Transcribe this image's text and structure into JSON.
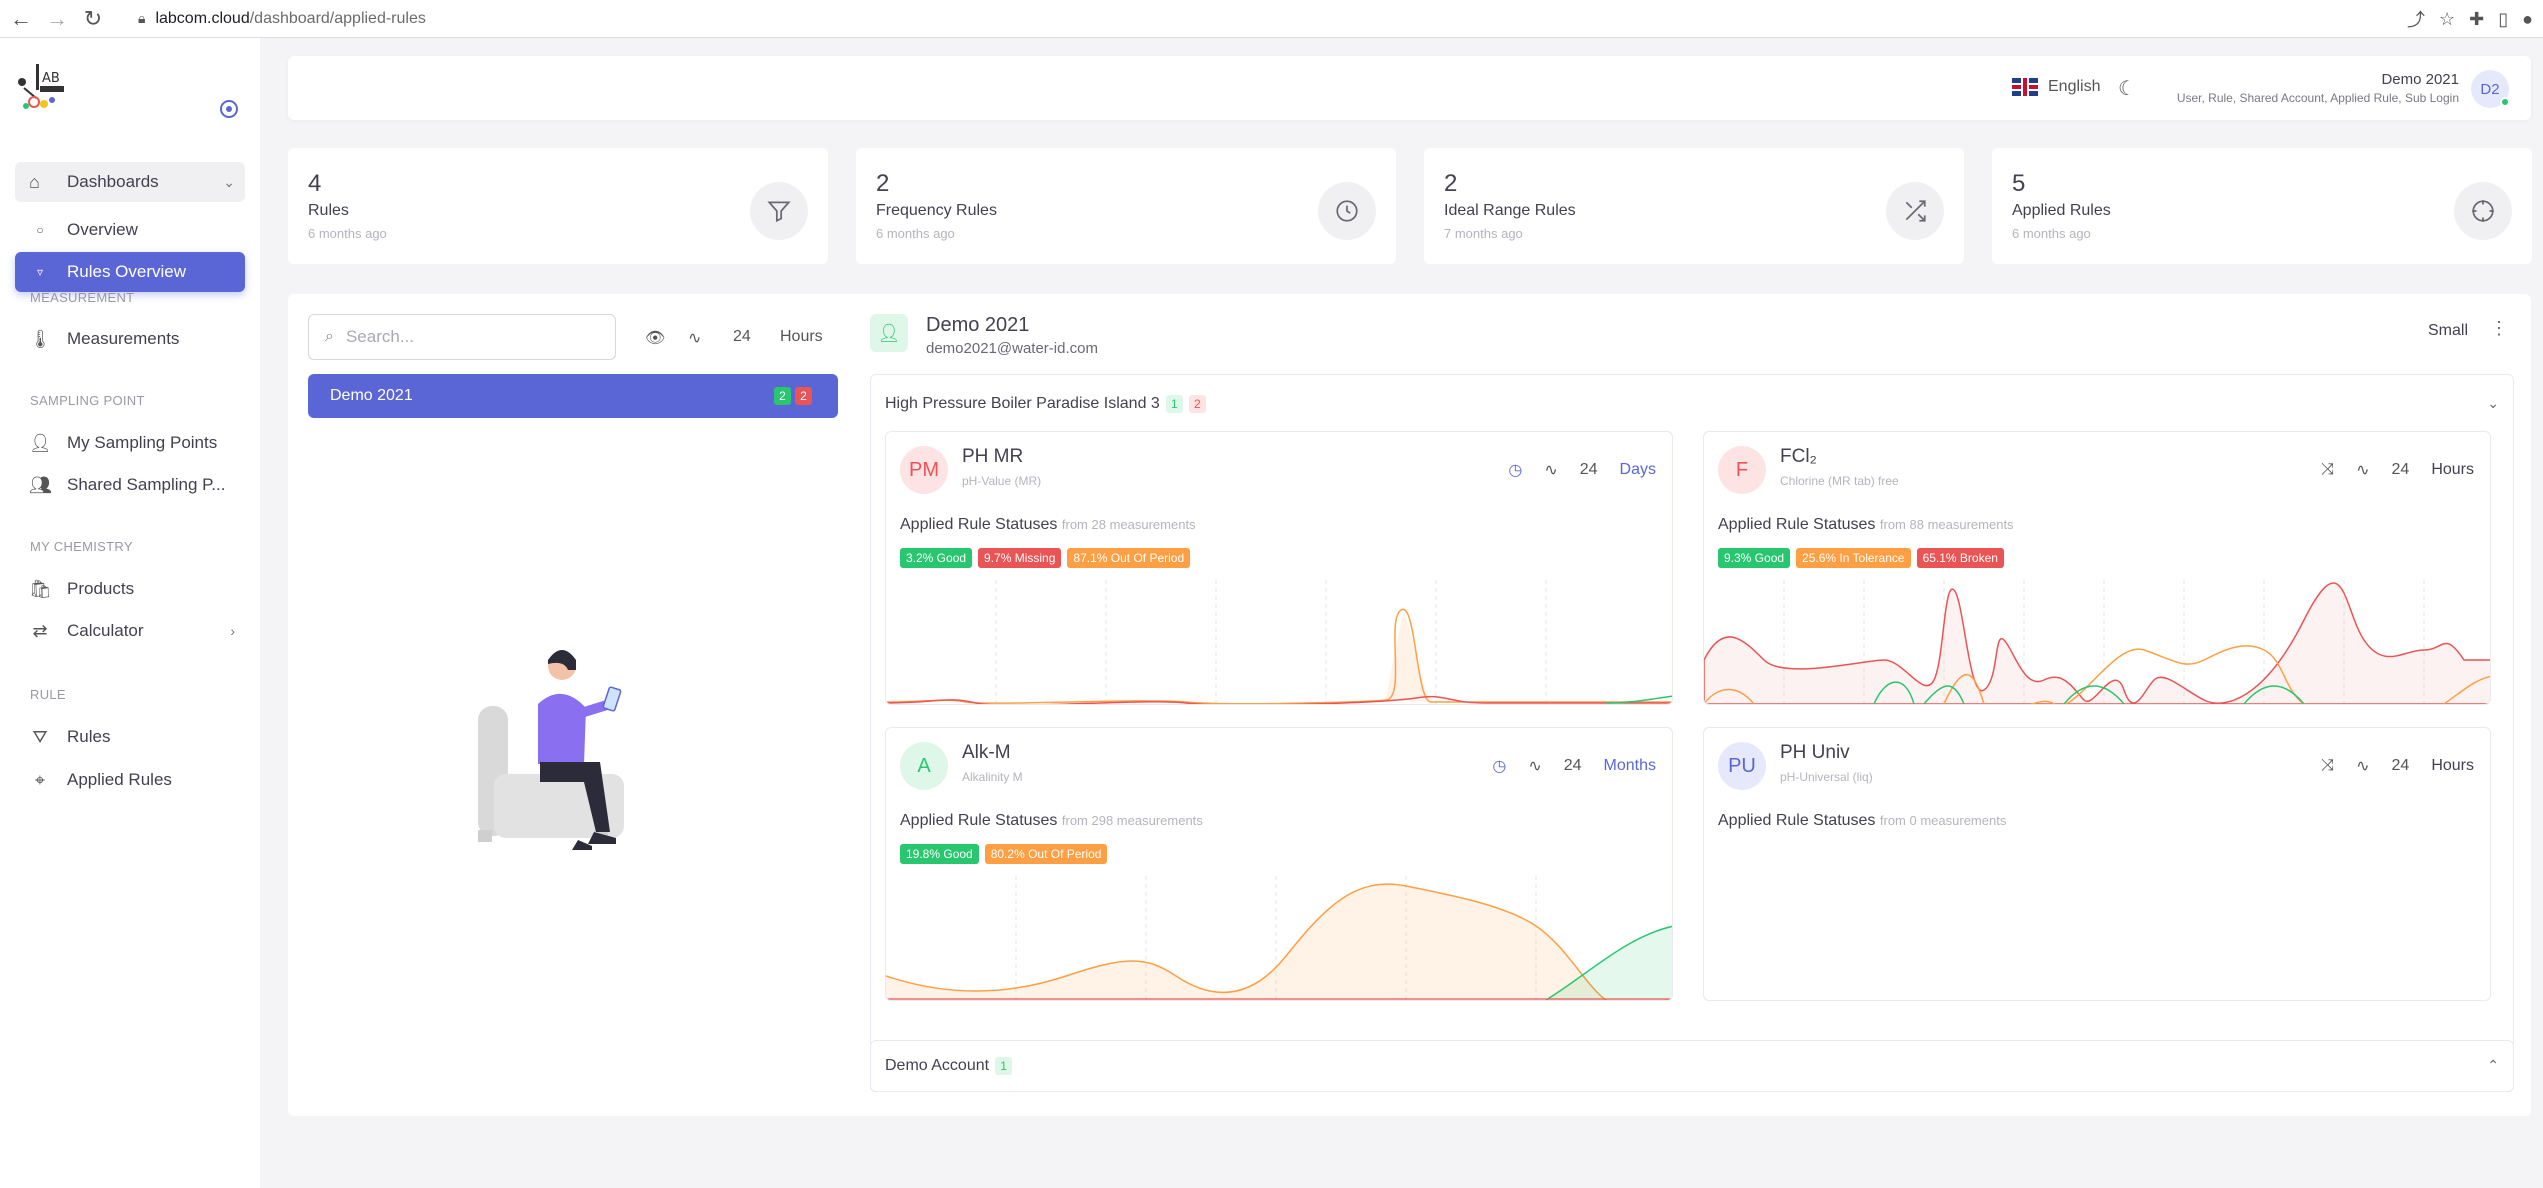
{
  "browser": {
    "url_host": "labcom.cloud",
    "url_path": "/dashboard/applied-rules"
  },
  "sidebar": {
    "dashboards_label": "Dashboards",
    "overview_label": "Overview",
    "rules_overview_label": "Rules Overview",
    "section_measurement": "MEASUREMENT",
    "measurements_label": "Measurements",
    "section_sampling": "SAMPLING POINT",
    "my_sampling_label": "My Sampling Points",
    "shared_sampling_label": "Shared Sampling P...",
    "section_chemistry": "MY CHEMISTRY",
    "products_label": "Products",
    "calculator_label": "Calculator",
    "section_rule": "RULE",
    "rules_label": "Rules",
    "applied_rules_label": "Applied Rules"
  },
  "header": {
    "language": "English",
    "user_name": "Demo 2021",
    "user_roles": "User, Rule, Shared Account, Applied Rule, Sub Login",
    "avatar_initials": "D2"
  },
  "stats": [
    {
      "value": "4",
      "label": "Rules",
      "sub": "6 months ago",
      "icon": "filter-icon"
    },
    {
      "value": "2",
      "label": "Frequency Rules",
      "sub": "6 months ago",
      "icon": "clock-icon"
    },
    {
      "value": "2",
      "label": "Ideal Range Rules",
      "sub": "7 months ago",
      "icon": "shuffle-icon"
    },
    {
      "value": "5",
      "label": "Applied Rules",
      "sub": "6 months ago",
      "icon": "crosshair-icon"
    }
  ],
  "filters": {
    "search_placeholder": "Search...",
    "period_value": "24",
    "period_unit": "Hours"
  },
  "account_list": [
    {
      "name": "Demo 2021",
      "green_count": "2",
      "red_count": "2"
    }
  ],
  "account": {
    "name": "Demo 2021",
    "email": "demo2021@water-id.com",
    "size_label": "Small"
  },
  "groups": [
    {
      "name": "High Pressure Boiler Paradise Island 3",
      "green_count": "1",
      "red_count": "2"
    },
    {
      "name": "Demo Account",
      "green_count": "1"
    }
  ],
  "cards": [
    {
      "initials": "PM",
      "title": "PH MR",
      "subtitle": "pH-Value (MR)",
      "period": "24",
      "unit": "Days",
      "status_label": "Applied Rule Statuses",
      "from_text": "from 28 measurements",
      "badges": [
        {
          "text": "3.2% Good",
          "kind": "good"
        },
        {
          "text": "9.7% Missing",
          "kind": "missing"
        },
        {
          "text": "87.1% Out Of Period",
          "kind": "period"
        }
      ]
    },
    {
      "initials": "F",
      "title": "FCl₂",
      "subtitle": "Chlorine (MR tab) free",
      "period": "24",
      "unit": "Hours",
      "status_label": "Applied Rule Statuses",
      "from_text": "from 88 measurements",
      "badges": [
        {
          "text": "9.3% Good",
          "kind": "good"
        },
        {
          "text": "25.6% In Tolerance",
          "kind": "tol"
        },
        {
          "text": "65.1% Broken",
          "kind": "broken"
        }
      ]
    },
    {
      "initials": "A",
      "title": "Alk-M",
      "subtitle": "Alkalinity M",
      "period": "24",
      "unit": "Months",
      "status_label": "Applied Rule Statuses",
      "from_text": "from 298 measurements",
      "badges": [
        {
          "text": "19.8% Good",
          "kind": "good"
        },
        {
          "text": "80.2% Out Of Period",
          "kind": "period"
        }
      ]
    },
    {
      "initials": "PU",
      "title": "PH Univ",
      "subtitle": "pH-Universal (liq)",
      "period": "24",
      "unit": "Hours",
      "status_label": "Applied Rule Statuses",
      "from_text": "from 0 measurements",
      "badges": []
    }
  ],
  "colors": {
    "primary": "#5a66d6",
    "good": "#28c76f",
    "bad": "#ea5455",
    "warn": "#ff9f43"
  }
}
